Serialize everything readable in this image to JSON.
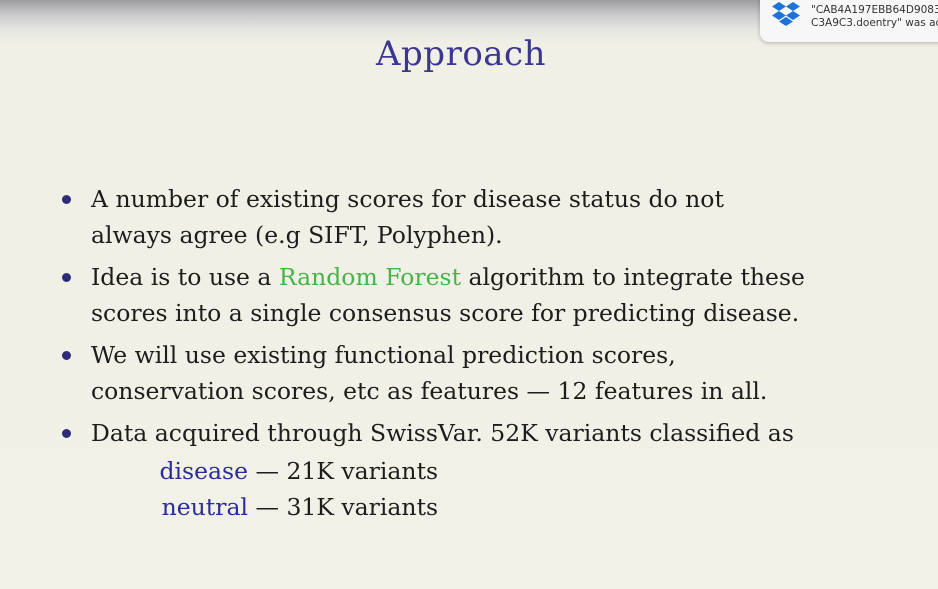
{
  "slide": {
    "title": "Approach",
    "bullets": [
      {
        "lines": [
          "A number of existing scores for disease status do not",
          "always agree (e.g SIFT, Polyphen)."
        ]
      },
      {
        "line1_before": "Idea is to use a ",
        "line1_highlight": "Random Forest",
        "line1_after": " algorithm to integrate these",
        "line2": "scores into a single consensus score for predicting disease."
      },
      {
        "lines": [
          "We will use existing functional prediction scores,",
          "conservation scores, etc as features — 12 features in all."
        ]
      },
      {
        "line1": "Data acquired through SwissVar. 52K variants classified as",
        "classes": [
          {
            "label": "disease",
            "count": "— 21K variants"
          },
          {
            "label": "neutral",
            "count": "— 31K variants"
          }
        ]
      }
    ],
    "colors": {
      "title": "#3b3790",
      "highlight": "#49b34a",
      "class_label": "#2b2b9a"
    }
  },
  "notification": {
    "icon": "dropbox-icon",
    "line1": "\"CAB4A197EBB64D9083",
    "line2": "C3A9C3.doentry\" was ac"
  }
}
